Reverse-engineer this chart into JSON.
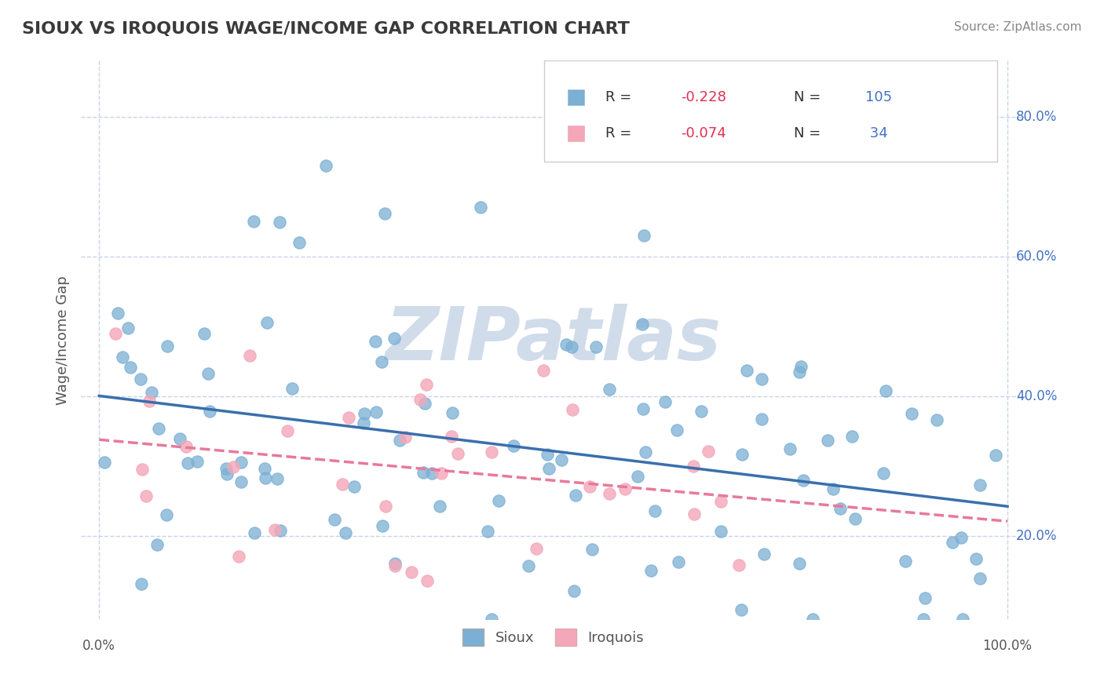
{
  "title": "SIOUX VS IROQUOIS WAGE/INCOME GAP CORRELATION CHART",
  "source": "Source: ZipAtlas.com",
  "ylabel": "Wage/Income Gap",
  "sioux_R": -0.228,
  "sioux_N": 105,
  "iroquois_R": -0.074,
  "iroquois_N": 34,
  "sioux_color": "#7bafd4",
  "iroquois_color": "#f4a7b9",
  "sioux_line_color": "#3a6fad",
  "iroquois_line_color": "#e8799a",
  "background_color": "#ffffff",
  "grid_color": "#c8d4e8",
  "watermark_text": "ZIPatlas",
  "watermark_color": "#d0dcea",
  "legend_r_color": "#e03050",
  "legend_n_color": "#4472c4",
  "yticks": [
    0.2,
    0.4,
    0.6,
    0.8
  ],
  "ytick_labels": [
    "20.0%",
    "40.0%",
    "60.0%",
    "80.0%"
  ]
}
